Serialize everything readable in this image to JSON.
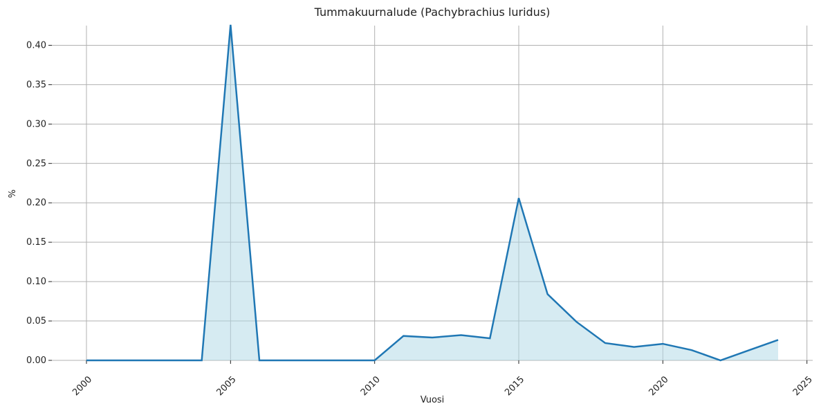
{
  "chart_data": {
    "type": "area-line",
    "title": "Tummakuurnalude (Pachybrachius luridus)",
    "xlabel": "Vuosi",
    "ylabel": "%",
    "x": [
      2000,
      2001,
      2002,
      2003,
      2004,
      2005,
      2006,
      2007,
      2008,
      2009,
      2010,
      2011,
      2012,
      2013,
      2014,
      2015,
      2016,
      2017,
      2018,
      2019,
      2020,
      2021,
      2022,
      2023,
      2024
    ],
    "series": [
      {
        "color": "#1f77b4",
        "fill": "#add8e6",
        "values": [
          0,
          0,
          0,
          0,
          0,
          0.426,
          0,
          0,
          0,
          0,
          0,
          0.031,
          0.029,
          0.032,
          0.028,
          0.206,
          0.084,
          0.049,
          0.022,
          0.017,
          0.021,
          0.013,
          0,
          0.013,
          0.026
        ]
      }
    ],
    "xlim": [
      1998.8,
      2025.2
    ],
    "ylim": [
      0,
      0.425
    ],
    "xticks": [
      2000,
      2005,
      2010,
      2015,
      2020,
      2025
    ],
    "yticks": [
      {
        "value": 0,
        "label": "0.00"
      },
      {
        "value": 0.05,
        "label": "0.05"
      },
      {
        "value": 0.1,
        "label": "0.10"
      },
      {
        "value": 0.15,
        "label": "0.15"
      },
      {
        "value": 0.2,
        "label": "0.20"
      },
      {
        "value": 0.25,
        "label": "0.25"
      },
      {
        "value": 0.3,
        "label": "0.30"
      },
      {
        "value": 0.35,
        "label": "0.35"
      },
      {
        "value": 0.4,
        "label": "0.40"
      }
    ],
    "grid": true
  }
}
